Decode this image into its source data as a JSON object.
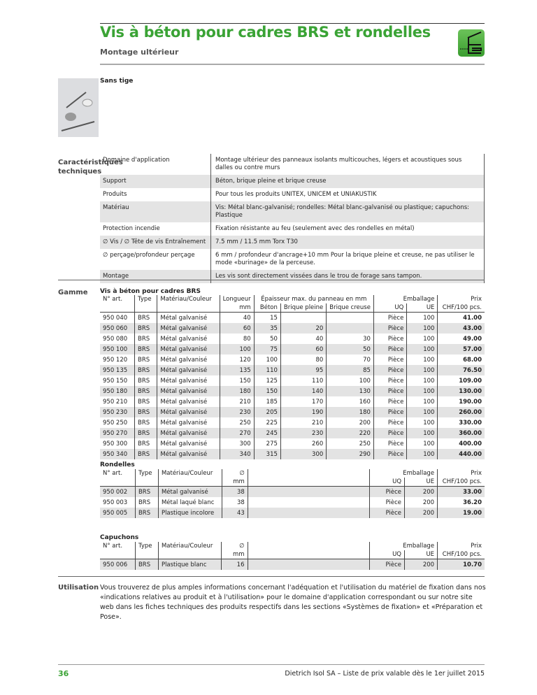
{
  "header": {
    "title": "Vis à béton pour cadres BRS et rondelles",
    "subtitle": "Montage ultérieur",
    "icon": "facade-mounting-icon",
    "accent": "#3aa335"
  },
  "variant": "Sans tige",
  "specs": {
    "label": "Caractéristiques techniques",
    "rows": [
      {
        "k": "Domaine d'application",
        "v": "Montage ultérieur des panneaux isolants multicouches, légers et acoustiques sous dalles ou contre murs"
      },
      {
        "k": "Support",
        "v": "Béton, brique pleine et brique creuse"
      },
      {
        "k": "Produits",
        "v": "Pour tous les produits UNITEX, UNICEM et UNIAKUSTIK"
      },
      {
        "k": "Matériau",
        "v": "Vis: Métal blanc-galvanisé; rondelles: Métal blanc-galvanisé ou plastique; capuchons: Plastique"
      },
      {
        "k": "Protection incendie",
        "v": "Fixation résistante au feu (seulement avec des rondelles en métal)"
      },
      {
        "k": "∅ Vis / ∅ Tête de vis Entraînement",
        "v": "7.5 mm / 11.5 mm Torx T30"
      },
      {
        "k": "∅ perçage/profondeur perçage",
        "v": "6 mm / profondeur d'ancrage+10 mm Pour la brique pleine et creuse, ne pas utiliser le mode «burinage» de la perceuse."
      },
      {
        "k": "Montage",
        "v": "Les vis sont directement vissées dans le trou de forage sans tampon."
      }
    ]
  },
  "gamme": {
    "label": "Gamme",
    "vis": {
      "title": "Vis à béton pour cadres BRS",
      "h": {
        "art": "N° art.",
        "type": "Type",
        "mat": "Matériau/Couleur",
        "len": "Longueur",
        "mm": "mm",
        "ep": "Épaisseur max. du panneau en mm",
        "beton": "Béton",
        "bp": "Brique pleine",
        "bc": "Brique creuse",
        "emb": "Emballage",
        "uq": "UQ",
        "ue": "UE",
        "prix": "Prix",
        "chf": "CHF/100 pcs."
      },
      "rows": [
        [
          "950 040",
          "BRS",
          "Métal galvanisé",
          "40",
          "15",
          "",
          "",
          "Pièce",
          "100",
          "41.00"
        ],
        [
          "950 060",
          "BRS",
          "Métal galvanisé",
          "60",
          "35",
          "20",
          "",
          "Pièce",
          "100",
          "43.00"
        ],
        [
          "950 080",
          "BRS",
          "Métal galvanisé",
          "80",
          "50",
          "40",
          "30",
          "Pièce",
          "100",
          "49.00"
        ],
        [
          "950 100",
          "BRS",
          "Métal galvanisé",
          "100",
          "75",
          "60",
          "50",
          "Pièce",
          "100",
          "57.00"
        ],
        [
          "950 120",
          "BRS",
          "Métal galvanisé",
          "120",
          "100",
          "80",
          "70",
          "Pièce",
          "100",
          "68.00"
        ],
        [
          "950 135",
          "BRS",
          "Métal galvanisé",
          "135",
          "110",
          "95",
          "85",
          "Pièce",
          "100",
          "76.50"
        ],
        [
          "950 150",
          "BRS",
          "Métal galvanisé",
          "150",
          "125",
          "110",
          "100",
          "Pièce",
          "100",
          "109.00"
        ],
        [
          "950 180",
          "BRS",
          "Métal galvanisé",
          "180",
          "150",
          "140",
          "130",
          "Pièce",
          "100",
          "130.00"
        ],
        [
          "950 210",
          "BRS",
          "Métal galvanisé",
          "210",
          "185",
          "170",
          "160",
          "Pièce",
          "100",
          "190.00"
        ],
        [
          "950 230",
          "BRS",
          "Métal galvanisé",
          "230",
          "205",
          "190",
          "180",
          "Pièce",
          "100",
          "260.00"
        ],
        [
          "950 250",
          "BRS",
          "Métal galvanisé",
          "250",
          "225",
          "210",
          "200",
          "Pièce",
          "100",
          "330.00"
        ],
        [
          "950 270",
          "BRS",
          "Métal galvanisé",
          "270",
          "245",
          "230",
          "220",
          "Pièce",
          "100",
          "360.00"
        ],
        [
          "950 300",
          "BRS",
          "Métal galvanisé",
          "300",
          "275",
          "260",
          "250",
          "Pièce",
          "100",
          "400.00"
        ],
        [
          "950 340",
          "BRS",
          "Métal galvanisé",
          "340",
          "315",
          "300",
          "290",
          "Pièce",
          "100",
          "440.00"
        ]
      ]
    },
    "rondelles": {
      "title": "Rondelles",
      "h": {
        "art": "N° art.",
        "type": "Type",
        "mat": "Matériau/Couleur",
        "dia": "∅",
        "mm": "mm",
        "emb": "Emballage",
        "uq": "UQ",
        "ue": "UE",
        "prix": "Prix",
        "chf": "CHF/100 pcs."
      },
      "rows": [
        [
          "950 002",
          "BRS",
          "Métal galvanisé",
          "38",
          "Pièce",
          "200",
          "33.00"
        ],
        [
          "950 003",
          "BRS",
          "Métal laqué blanc",
          "38",
          "Pièce",
          "200",
          "36.20"
        ],
        [
          "950 005",
          "BRS",
          "Plastique incolore",
          "43",
          "Pièce",
          "200",
          "19.00"
        ]
      ]
    },
    "capuchons": {
      "title": "Capuchons",
      "h": {
        "art": "N° art.",
        "type": "Type",
        "mat": "Matériau/Couleur",
        "dia": "∅",
        "mm": "mm",
        "emb": "Emballage",
        "uq": "UQ",
        "ue": "UE",
        "prix": "Prix",
        "chf": "CHF/100 pcs."
      },
      "rows": [
        [
          "950 006",
          "BRS",
          "Plastique blanc",
          "16",
          "Pièce",
          "200",
          "10.70"
        ]
      ]
    }
  },
  "utilisation": {
    "label": "Utilisation",
    "text": "Vous trouverez de plus amples informations concernant l'adéquation et l'utilisation du matériel de fixation dans nos «indications relatives au produit et à l'utilisation» pour le domaine d'application correspondant ou sur notre site web dans les fiches techniques des produits respectifs dans les sections «Systèmes de fixation» et «Préparation et Pose»."
  },
  "footer": {
    "page": "36",
    "text": "Dietrich Isol SA – Liste de prix valable dès le 1er juillet 2015"
  }
}
